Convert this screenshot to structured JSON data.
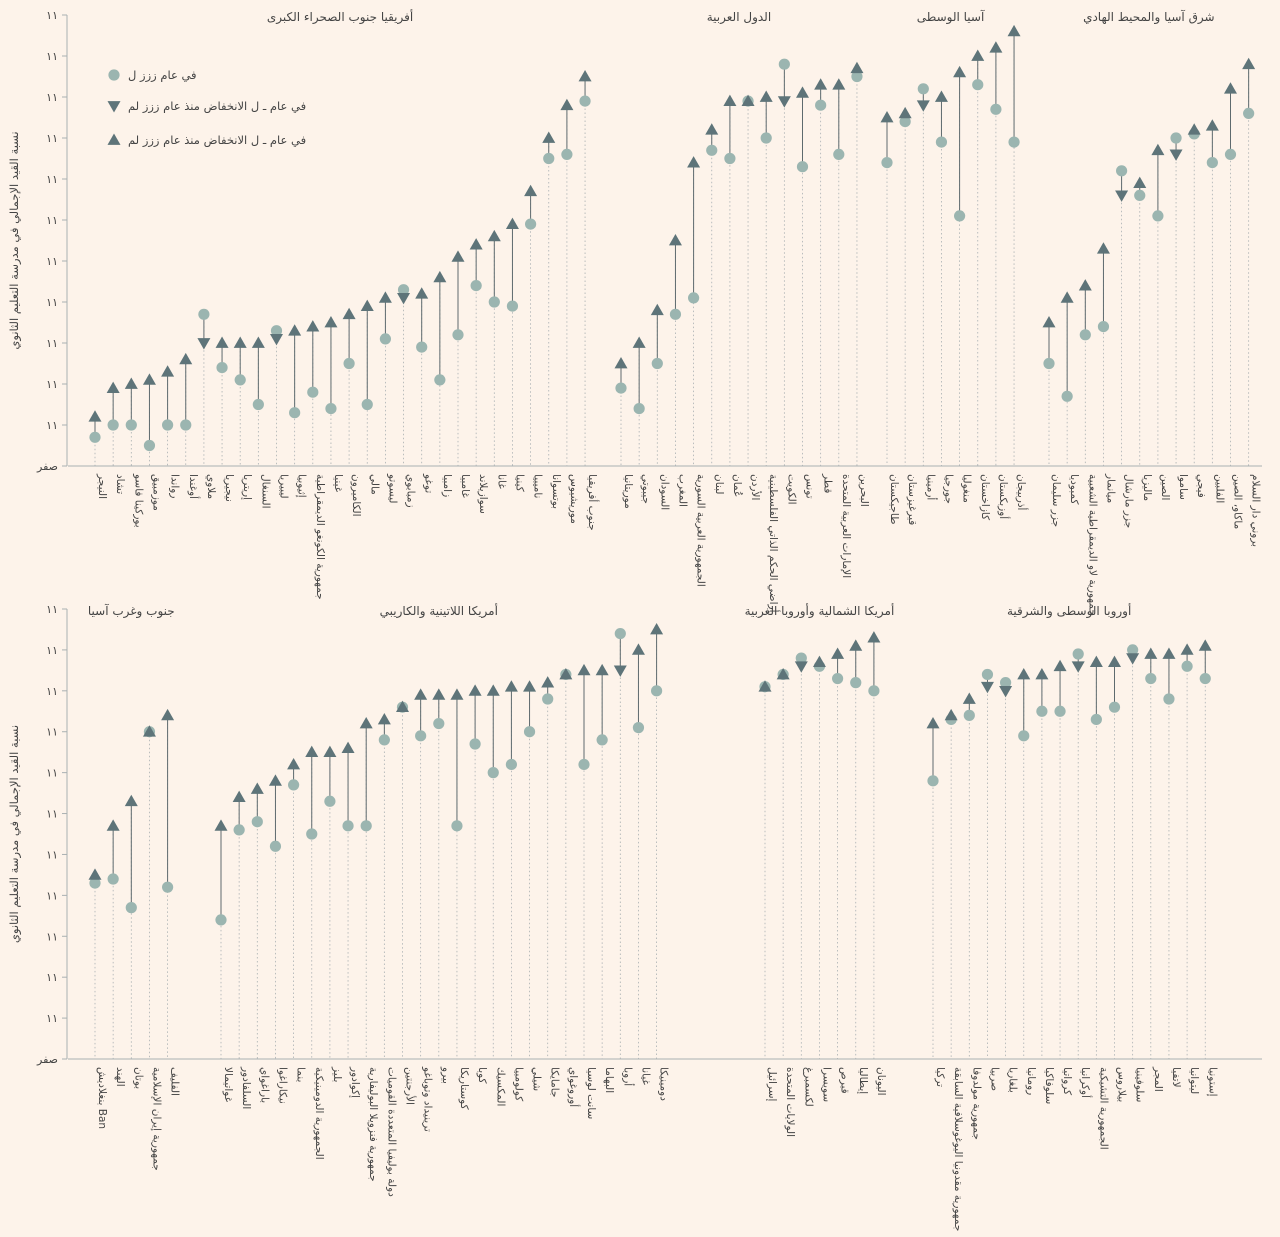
{
  "legend": {
    "items": [
      {
        "symbol": "circle",
        "label": "في عام ززز ل"
      },
      {
        "symbol": "triangle-down",
        "label": "في عام ـ ل الانخفاض منذ عام ززز لم"
      },
      {
        "symbol": "triangle-up",
        "label": "في عام ـ ل الانخفاض منذ عام ززز لم"
      }
    ]
  },
  "colors": {
    "background": "#fdf3ea",
    "circle": "#9bb5b0",
    "triangle": "#5e7479",
    "line": "#5e6a6e",
    "grid": "#a9b0b2"
  },
  "chart_data": [
    {
      "type": "scatter",
      "ylabel": "نسبة القيد الإجمالي في مدرسة التعليم الثانوي",
      "yticks": [
        "صفر",
        "۱۱",
        "۱۱",
        "۱۱",
        "۱۱",
        "۱۱",
        "۱۱",
        "۱۱",
        "۱۱",
        "۱۱",
        "۱۱",
        "۱۱"
      ],
      "ylim": [
        0,
        110
      ],
      "groups": [
        {
          "title": "أفريقيا جنوب الصحراء الكبرى",
          "countries": [
            {
              "name": "النيجر",
              "v1999": 7,
              "v2017": 12
            },
            {
              "name": "تشاد",
              "v1999": 10,
              "v2017": 19
            },
            {
              "name": "بوركينا فاسو",
              "v1999": 10,
              "v2017": 20
            },
            {
              "name": "موزمبيق",
              "v1999": 5,
              "v2017": 21
            },
            {
              "name": "رواندا",
              "v1999": 10,
              "v2017": 23
            },
            {
              "name": "أوغندا",
              "v1999": 10,
              "v2017": 26
            },
            {
              "name": "ملاوي",
              "v1999": 37,
              "v2017": 30
            },
            {
              "name": "نيجيريا",
              "v1999": 24,
              "v2017": 30
            },
            {
              "name": "إريتريا",
              "v1999": 21,
              "v2017": 30
            },
            {
              "name": "السنغال",
              "v1999": 15,
              "v2017": 30
            },
            {
              "name": "ليبيريا",
              "v1999": 33,
              "v2017": 31
            },
            {
              "name": "إثيوبيا",
              "v1999": 13,
              "v2017": 33
            },
            {
              "name": "جمهورية الكونغو الديمقراطية",
              "v1999": 18,
              "v2017": 34
            },
            {
              "name": "غينيا",
              "v1999": 14,
              "v2017": 35
            },
            {
              "name": "الكاميرون",
              "v1999": 25,
              "v2017": 37
            },
            {
              "name": "مالي",
              "v1999": 15,
              "v2017": 39
            },
            {
              "name": "ليسوتو",
              "v1999": 31,
              "v2017": 41
            },
            {
              "name": "زمبابوي",
              "v1999": 43,
              "v2017": 41
            },
            {
              "name": "توغو",
              "v1999": 29,
              "v2017": 42
            },
            {
              "name": "زامبيا",
              "v1999": 21,
              "v2017": 46
            },
            {
              "name": "غامبيا",
              "v1999": 32,
              "v2017": 51
            },
            {
              "name": "سوازيلاند",
              "v1999": 44,
              "v2017": 54
            },
            {
              "name": "غانا",
              "v1999": 40,
              "v2017": 56
            },
            {
              "name": "كينيا",
              "v1999": 39,
              "v2017": 59
            },
            {
              "name": "ناميبيا",
              "v1999": 59,
              "v2017": 67
            },
            {
              "name": "بوتسوانا",
              "v1999": 75,
              "v2017": 80
            },
            {
              "name": "موريشيوس",
              "v1999": 76,
              "v2017": 88
            },
            {
              "name": "جنوب أفريقيا",
              "v1999": 89,
              "v2017": 95
            }
          ]
        },
        {
          "title": "الدول العربية",
          "countries": [
            {
              "name": "موريتانيا",
              "v1999": 19,
              "v2017": 25
            },
            {
              "name": "جيبوتي",
              "v1999": 14,
              "v2017": 30
            },
            {
              "name": "السودان",
              "v1999": 25,
              "v2017": 38
            },
            {
              "name": "المغرب",
              "v1999": 37,
              "v2017": 55
            },
            {
              "name": "الجمهورية العربية السورية",
              "v1999": 41,
              "v2017": 74
            },
            {
              "name": "لبنان",
              "v1999": 77,
              "v2017": 82
            },
            {
              "name": "عُمان",
              "v1999": 75,
              "v2017": 89
            },
            {
              "name": "الأردن",
              "v1999": 89,
              "v2017": 89
            },
            {
              "name": "أراضي الحكم الذاتي الفلسطينية",
              "v1999": 80,
              "v2017": 90
            },
            {
              "name": "الكويت",
              "v1999": 98,
              "v2017": 89
            },
            {
              "name": "تونس",
              "v1999": 73,
              "v2017": 91
            },
            {
              "name": "قطر",
              "v1999": 88,
              "v2017": 93
            },
            {
              "name": "الإمارات العربية المتحدة",
              "v1999": 76,
              "v2017": 93
            },
            {
              "name": "البحرين",
              "v1999": 95,
              "v2017": 97
            }
          ]
        },
        {
          "title": "آسيا الوسطى",
          "countries": [
            {
              "name": "طاجيكستان",
              "v1999": 74,
              "v2017": 85
            },
            {
              "name": "قيرغيزستان",
              "v1999": 84,
              "v2017": 86
            },
            {
              "name": "أرمينيا",
              "v1999": 92,
              "v2017": 88
            },
            {
              "name": "جورجيا",
              "v1999": 79,
              "v2017": 90
            },
            {
              "name": "منغوليا",
              "v1999": 61,
              "v2017": 96
            },
            {
              "name": "كازاخستان",
              "v1999": 93,
              "v2017": 100
            },
            {
              "name": "أوزبكستان",
              "v1999": 87,
              "v2017": 102
            },
            {
              "name": "أذربيجان",
              "v1999": 79,
              "v2017": 106
            }
          ]
        },
        {
          "title": "شرق آسيا والمحيط الهادي",
          "countries": [
            {
              "name": "جزر سليمان",
              "v1999": 25,
              "v2017": 35
            },
            {
              "name": "كمبوديا",
              "v1999": 17,
              "v2017": 41
            },
            {
              "name": "جمهورية لاو الديمقراطية الشعبية",
              "v1999": 32,
              "v2017": 44
            },
            {
              "name": "ميانمار",
              "v1999": 34,
              "v2017": 53
            },
            {
              "name": "جزر مارشال",
              "v1999": 72,
              "v2017": 66
            },
            {
              "name": "ماليزيا",
              "v1999": 66,
              "v2017": 69
            },
            {
              "name": "الصين",
              "v1999": 61,
              "v2017": 77
            },
            {
              "name": "ساموا",
              "v1999": 80,
              "v2017": 76
            },
            {
              "name": "فيجي",
              "v1999": 81,
              "v2017": 82
            },
            {
              "name": "الفلبين",
              "v1999": 74,
              "v2017": 83
            },
            {
              "name": "ماكاو، الصين",
              "v1999": 76,
              "v2017": 92
            },
            {
              "name": "بروني دار السلام",
              "v1999": 86,
              "v2017": 98
            }
          ]
        }
      ]
    },
    {
      "type": "scatter",
      "ylabel": "نسبة القيد الإجمالي في مدرسة التعليم الثانوي",
      "yticks": [
        "صفر",
        "۱۱",
        "۱۱",
        "۱۱",
        "۱۱",
        "۱۱",
        "۱۱",
        "۱۱",
        "۱۱",
        "۱۱",
        "۱۱",
        "۱۱"
      ],
      "ylim": [
        0,
        110
      ],
      "groups": [
        {
          "title": "جنوب وغرب آسيا",
          "countries": [
            {
              "name": "بنغلاديش Ban",
              "v1999": 43,
              "v2017": 45
            },
            {
              "name": "الهند",
              "v1999": 44,
              "v2017": 57
            },
            {
              "name": "بوتان",
              "v1999": 37,
              "v2017": 63
            },
            {
              "name": "جمهورية إيران الإسلامية",
              "v1999": 80,
              "v2017": 80
            },
            {
              "name": "الفليف",
              "v1999": 42,
              "v2017": 84
            }
          ]
        },
        {
          "title": "أمريكا اللاتينية والكاريبي",
          "countries": [
            {
              "name": "غواتيمالا",
              "v1999": 34,
              "v2017": 57
            },
            {
              "name": "السلفادور",
              "v1999": 56,
              "v2017": 64
            },
            {
              "name": "باراغواي",
              "v1999": 58,
              "v2017": 66
            },
            {
              "name": "نيكاراغوا",
              "v1999": 52,
              "v2017": 68
            },
            {
              "name": "بنما",
              "v1999": 67,
              "v2017": 72
            },
            {
              "name": "الجمهورية الدومينيكية",
              "v1999": 55,
              "v2017": 75
            },
            {
              "name": "بليز",
              "v1999": 63,
              "v2017": 75
            },
            {
              "name": "إكوادور",
              "v1999": 57,
              "v2017": 76
            },
            {
              "name": "جمهورية فنزويلا البوليفارية",
              "v1999": 57,
              "v2017": 82
            },
            {
              "name": "دولة بوليفيا المتعددة القوميات",
              "v1999": 78,
              "v2017": 83
            },
            {
              "name": "الأرجنتين",
              "v1999": 86,
              "v2017": 86
            },
            {
              "name": "ترينيداد وتوباغو",
              "v1999": 79,
              "v2017": 89
            },
            {
              "name": "بيرو",
              "v1999": 82,
              "v2017": 89
            },
            {
              "name": "كوستاريكا",
              "v1999": 57,
              "v2017": 89
            },
            {
              "name": "كوبا",
              "v1999": 77,
              "v2017": 90
            },
            {
              "name": "المكسيك",
              "v1999": 70,
              "v2017": 90
            },
            {
              "name": "كولومبيا",
              "v1999": 72,
              "v2017": 91
            },
            {
              "name": "شيلي",
              "v1999": 80,
              "v2017": 91
            },
            {
              "name": "جامايكا",
              "v1999": 88,
              "v2017": 92
            },
            {
              "name": "أوروغواي",
              "v1999": 94,
              "v2017": 94
            },
            {
              "name": "سانت لوسيا",
              "v1999": 72,
              "v2017": 95
            },
            {
              "name": "البهاما",
              "v1999": 78,
              "v2017": 95
            },
            {
              "name": "أروبا",
              "v1999": 104,
              "v2017": 95
            },
            {
              "name": "غيانا",
              "v1999": 81,
              "v2017": 100
            },
            {
              "name": "دومينيكا",
              "v1999": 90,
              "v2017": 105
            }
          ]
        },
        {
          "title": "أمريكا الشمالية وأوروبا الغربية",
          "countries": [
            {
              "name": "إسرائيل",
              "v1999": 91,
              "v2017": 91
            },
            {
              "name": "الولايات المتحدة",
              "v1999": 94,
              "v2017": 94
            },
            {
              "name": "لكسمبرغ",
              "v1999": 98,
              "v2017": 96
            },
            {
              "name": "سويسرا",
              "v1999": 96,
              "v2017": 97
            },
            {
              "name": "قبرص",
              "v1999": 93,
              "v2017": 99
            },
            {
              "name": "إيطاليا",
              "v1999": 92,
              "v2017": 101
            },
            {
              "name": "اليونان",
              "v1999": 90,
              "v2017": 103
            }
          ]
        },
        {
          "title": "أوروبا الوسطى والشرقية",
          "countries": [
            {
              "name": "تركيا",
              "v1999": 68,
              "v2017": 82
            },
            {
              "name": "جمهورية مقدونيا اليوغوسلافية السابقة",
              "v1999": 83,
              "v2017": 84
            },
            {
              "name": "جمهورية مولدوفا",
              "v1999": 84,
              "v2017": 88
            },
            {
              "name": "صربيا",
              "v1999": 94,
              "v2017": 91
            },
            {
              "name": "بلغاريا",
              "v1999": 92,
              "v2017": 90
            },
            {
              "name": "رومانيا",
              "v1999": 79,
              "v2017": 94
            },
            {
              "name": "سلوفاكيا",
              "v1999": 85,
              "v2017": 94
            },
            {
              "name": "كرواتيا",
              "v1999": 85,
              "v2017": 96
            },
            {
              "name": "أوكرانيا",
              "v1999": 99,
              "v2017": 96
            },
            {
              "name": "الجمهورية التشيكية",
              "v1999": 83,
              "v2017": 97
            },
            {
              "name": "بيلاروس",
              "v1999": 86,
              "v2017": 97
            },
            {
              "name": "سلوفينيا",
              "v1999": 100,
              "v2017": 98
            },
            {
              "name": "المجر",
              "v1999": 93,
              "v2017": 99
            },
            {
              "name": "لاتفيا",
              "v1999": 88,
              "v2017": 99
            },
            {
              "name": "ليتوانيا",
              "v1999": 96,
              "v2017": 100
            },
            {
              "name": "إستونيا",
              "v1999": 93,
              "v2017": 101
            }
          ]
        }
      ]
    }
  ]
}
